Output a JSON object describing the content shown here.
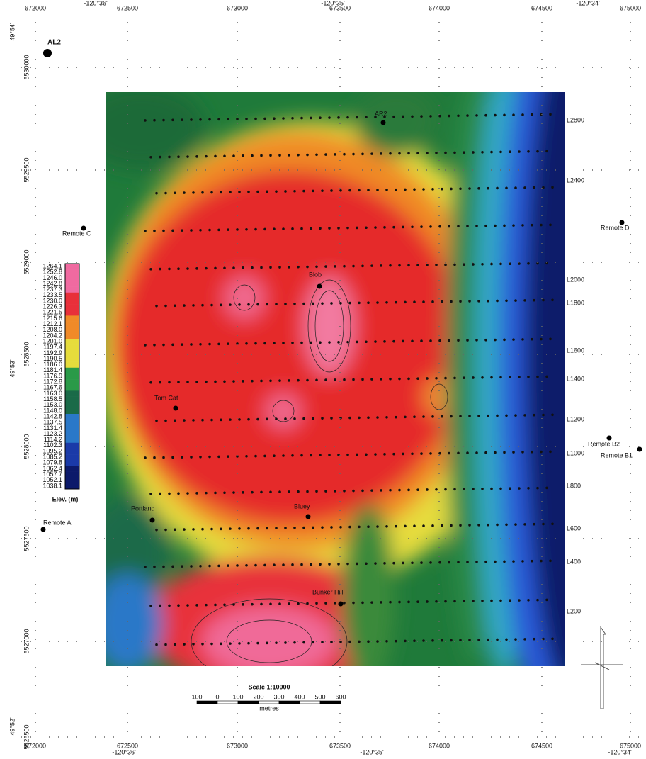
{
  "map": {
    "easting_top": [
      672000,
      672500,
      673000,
      673500,
      674000,
      674500,
      675000
    ],
    "easting_bottom": [
      672000,
      672500,
      673000,
      673500,
      674000,
      674500,
      675000
    ],
    "longitude_top": [
      "-120°36'",
      "-120°35'",
      "-120°34'"
    ],
    "longitude_bottom": [
      "-120°36'",
      "-120°35'",
      "-120°34'"
    ],
    "northing": [
      5530000,
      5529500,
      5529000,
      5528500,
      5528000,
      5527500,
      5527000,
      5526500
    ],
    "latitude": [
      "49°54'",
      "49°53'",
      "49°52'"
    ],
    "stations": [
      "AL2",
      "AR2",
      "Remote C",
      "Remote D",
      "Blob",
      "Tom Cat",
      "Portland",
      "Bluey",
      "Bunker Hill",
      "Remote A",
      "Remote B2",
      "Remote B1"
    ],
    "lines": [
      "L2800",
      "L2400",
      "L2000",
      "L1800",
      "L1600",
      "L1400",
      "L1200",
      "L1000",
      "L800",
      "L600",
      "L400",
      "L200"
    ],
    "legend": {
      "title": "Elev. (m)",
      "values": [
        "1264.1",
        "1252.8",
        "1246.0",
        "1242.8",
        "1237.3",
        "1233.5",
        "1230.0",
        "1226.3",
        "1221.5",
        "1215.6",
        "1212.1",
        "1208.0",
        "1204.2",
        "1201.0",
        "1197.4",
        "1192.9",
        "1190.5",
        "1186.0",
        "1181.4",
        "1176.9",
        "1172.8",
        "1167.6",
        "1163.0",
        "1158.5",
        "1153.0",
        "1148.0",
        "1142.8",
        "1137.5",
        "1131.4",
        "1123.2",
        "1114.2",
        "1102.3",
        "1095.2",
        "1085.2",
        "1079.8",
        "1062.4",
        "1057.7",
        "1052.1",
        "1038.1"
      ]
    },
    "scale": {
      "title": "Scale 1:10000",
      "ticks": [
        "100",
        "0",
        "100",
        "200",
        "300",
        "400",
        "500",
        "600"
      ],
      "unit": "metres"
    }
  }
}
